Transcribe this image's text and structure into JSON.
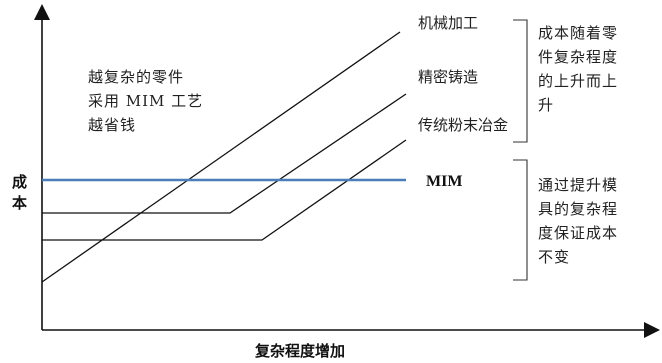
{
  "axes": {
    "y_label_line1": "成",
    "y_label_line2": "本",
    "x_label": "复杂程度增加"
  },
  "curves": {
    "machining": "机械加工",
    "precision_casting": "精密铸造",
    "powder_metallurgy": "传统粉末冶金",
    "mim": "MIM"
  },
  "left_note": {
    "line1": "越复杂的零件",
    "line2": "采用 MIM 工艺",
    "line3": "越省钱"
  },
  "right_note_top": {
    "line1": "成本随着零",
    "line2": "件复杂程度",
    "line3": "的上升而上",
    "line4": "升"
  },
  "right_note_bottom": {
    "line1": "通过提升模",
    "line2": "具的复杂程",
    "line3": "度保证成本",
    "line4": "不变"
  },
  "colors": {
    "mim_line": "#4a7ebb",
    "lines": "#111111"
  }
}
